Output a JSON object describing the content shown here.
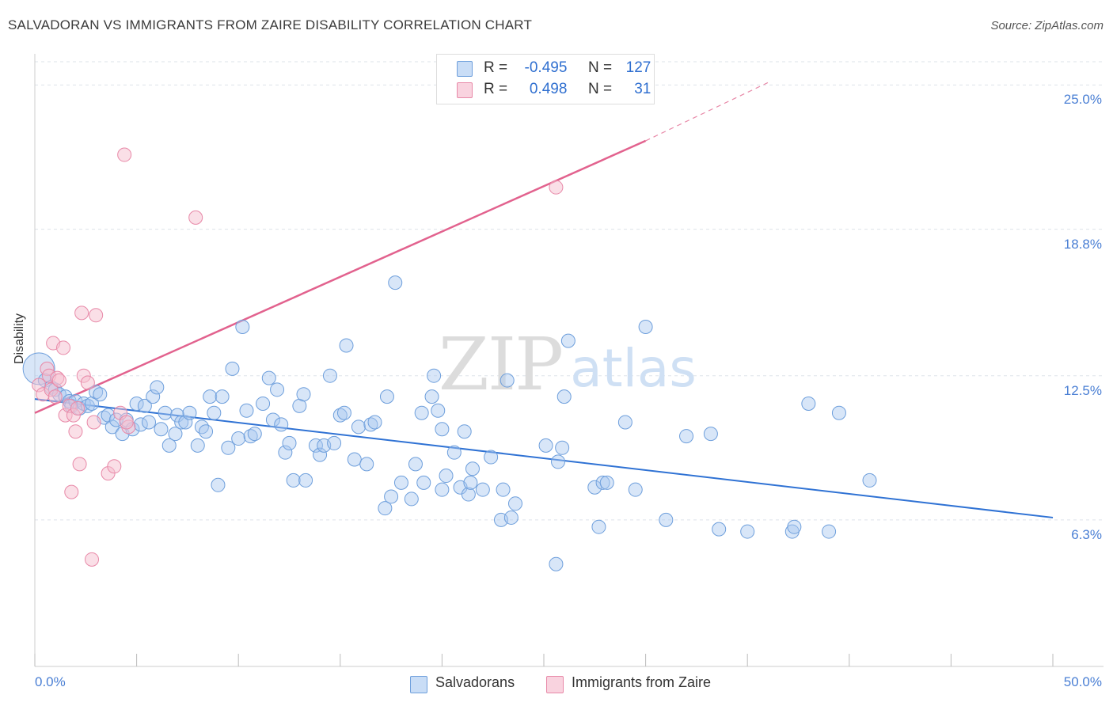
{
  "title": "SALVADORAN VS IMMIGRANTS FROM ZAIRE DISABILITY CORRELATION CHART",
  "source": "Source: ZipAtlas.com",
  "watermark": {
    "zip": "ZIP",
    "atlas": "atlas"
  },
  "legend": {
    "rows": [
      {
        "r_label": "R =",
        "r_value": "-0.495",
        "n_label": "N =",
        "n_value": "127",
        "color": "#a9c8f0"
      },
      {
        "r_label": "R =",
        "r_value": "0.498",
        "n_label": "N =",
        "n_value": "31",
        "color": "#f5b8ca"
      }
    ]
  },
  "bottom_legend": [
    {
      "label": "Salvadorans",
      "color": "#a9c8f0"
    },
    {
      "label": "Immigrants from Zaire",
      "color": "#f5b8ca"
    }
  ],
  "colors": {
    "blue_fill": "#a9c8f0",
    "blue_stroke": "#6e9fdc",
    "blue_line": "#2f72d4",
    "pink_fill": "#f5c0d0",
    "pink_stroke": "#e889a8",
    "pink_line": "#e2628e",
    "tick_text": "#4a7fd4",
    "grid": "#dde3ea"
  },
  "chart_data": {
    "type": "scatter",
    "ylabel": "Disability",
    "xlim": [
      0,
      50
    ],
    "ylim": [
      0,
      26
    ],
    "x_tick_labels": [
      "0.0%",
      "50.0%"
    ],
    "y_ticks": [
      {
        "value": 6.3,
        "label": "6.3%"
      },
      {
        "value": 12.5,
        "label": "12.5%"
      },
      {
        "value": 18.8,
        "label": "18.8%"
      },
      {
        "value": 25.0,
        "label": "25.0%"
      }
    ],
    "series": [
      {
        "name": "Salvadorans",
        "R": -0.495,
        "N": 127,
        "trend": {
          "x0": 0,
          "y0": 11.5,
          "x1": 50,
          "y1": 6.4
        },
        "points": [
          [
            0.2,
            12.8
          ],
          [
            0.5,
            12.3
          ],
          [
            0.8,
            12.0
          ],
          [
            1.0,
            11.9
          ],
          [
            1.2,
            11.7
          ],
          [
            1.5,
            11.6
          ],
          [
            1.7,
            11.4
          ],
          [
            1.8,
            11.2
          ],
          [
            2.0,
            11.4
          ],
          [
            2.2,
            11.1
          ],
          [
            2.4,
            11.3
          ],
          [
            2.6,
            11.2
          ],
          [
            2.8,
            11.3
          ],
          [
            3.0,
            11.8
          ],
          [
            3.2,
            11.7
          ],
          [
            3.4,
            10.7
          ],
          [
            3.6,
            10.8
          ],
          [
            3.8,
            10.3
          ],
          [
            4.0,
            10.6
          ],
          [
            4.3,
            10.0
          ],
          [
            4.5,
            10.6
          ],
          [
            4.8,
            10.2
          ],
          [
            5.0,
            11.3
          ],
          [
            5.2,
            10.4
          ],
          [
            5.4,
            11.2
          ],
          [
            5.6,
            10.5
          ],
          [
            5.8,
            11.6
          ],
          [
            6.0,
            12.0
          ],
          [
            6.2,
            10.2
          ],
          [
            6.4,
            10.9
          ],
          [
            6.6,
            9.5
          ],
          [
            6.9,
            10.0
          ],
          [
            7.0,
            10.8
          ],
          [
            7.2,
            10.5
          ],
          [
            7.4,
            10.5
          ],
          [
            7.6,
            10.9
          ],
          [
            8.0,
            9.5
          ],
          [
            8.2,
            10.3
          ],
          [
            8.4,
            10.1
          ],
          [
            8.6,
            11.6
          ],
          [
            8.8,
            10.9
          ],
          [
            9.0,
            7.8
          ],
          [
            9.2,
            11.6
          ],
          [
            9.5,
            9.4
          ],
          [
            9.7,
            12.8
          ],
          [
            10.0,
            9.8
          ],
          [
            10.2,
            14.6
          ],
          [
            10.4,
            11.0
          ],
          [
            10.6,
            9.9
          ],
          [
            10.8,
            10.0
          ],
          [
            11.2,
            11.3
          ],
          [
            11.5,
            12.4
          ],
          [
            11.7,
            10.6
          ],
          [
            11.9,
            11.9
          ],
          [
            12.1,
            10.4
          ],
          [
            12.3,
            9.2
          ],
          [
            12.5,
            9.6
          ],
          [
            12.7,
            8.0
          ],
          [
            13.0,
            11.2
          ],
          [
            13.2,
            11.7
          ],
          [
            13.3,
            8.0
          ],
          [
            13.8,
            9.5
          ],
          [
            14.0,
            9.1
          ],
          [
            14.2,
            9.5
          ],
          [
            14.5,
            12.5
          ],
          [
            14.7,
            9.6
          ],
          [
            15.0,
            10.8
          ],
          [
            15.2,
            10.9
          ],
          [
            15.3,
            13.8
          ],
          [
            15.7,
            8.9
          ],
          [
            15.9,
            10.3
          ],
          [
            16.3,
            8.7
          ],
          [
            16.5,
            10.4
          ],
          [
            16.7,
            10.5
          ],
          [
            17.2,
            6.8
          ],
          [
            17.3,
            11.6
          ],
          [
            17.5,
            7.3
          ],
          [
            17.7,
            16.5
          ],
          [
            18.0,
            7.9
          ],
          [
            18.5,
            7.2
          ],
          [
            18.7,
            8.7
          ],
          [
            19.0,
            10.9
          ],
          [
            19.1,
            7.9
          ],
          [
            19.5,
            11.6
          ],
          [
            19.6,
            12.5
          ],
          [
            19.8,
            11.0
          ],
          [
            20.0,
            10.2
          ],
          [
            20.0,
            7.6
          ],
          [
            20.2,
            8.2
          ],
          [
            20.6,
            9.2
          ],
          [
            20.9,
            7.7
          ],
          [
            21.1,
            10.1
          ],
          [
            21.3,
            7.4
          ],
          [
            21.4,
            7.9
          ],
          [
            21.5,
            8.5
          ],
          [
            22.0,
            7.6
          ],
          [
            22.4,
            9.0
          ],
          [
            22.9,
            6.3
          ],
          [
            23.0,
            7.6
          ],
          [
            23.2,
            12.3
          ],
          [
            23.4,
            6.4
          ],
          [
            23.6,
            7.0
          ],
          [
            25.1,
            9.5
          ],
          [
            25.6,
            4.4
          ],
          [
            25.7,
            8.8
          ],
          [
            25.9,
            9.4
          ],
          [
            26.0,
            11.6
          ],
          [
            26.2,
            14.0
          ],
          [
            27.5,
            7.7
          ],
          [
            27.7,
            6.0
          ],
          [
            27.9,
            7.9
          ],
          [
            28.1,
            7.9
          ],
          [
            29.0,
            10.5
          ],
          [
            29.5,
            7.6
          ],
          [
            30.0,
            14.6
          ],
          [
            31.0,
            6.3
          ],
          [
            32.0,
            9.9
          ],
          [
            33.2,
            10.0
          ],
          [
            33.6,
            5.9
          ],
          [
            35.0,
            5.8
          ],
          [
            37.2,
            5.8
          ],
          [
            37.3,
            6.0
          ],
          [
            38.0,
            11.3
          ],
          [
            39.0,
            5.8
          ],
          [
            39.5,
            10.9
          ],
          [
            41.0,
            8.0
          ]
        ]
      },
      {
        "name": "Immigrants from Zaire",
        "R": 0.498,
        "N": 31,
        "trend": {
          "x0": 0,
          "y0": 10.9,
          "x1": 30,
          "y1": 22.6,
          "dash_to_x": 36,
          "dash_to_y": 25.1
        },
        "points": [
          [
            0.2,
            12.1
          ],
          [
            0.4,
            11.7
          ],
          [
            0.6,
            12.8
          ],
          [
            0.7,
            12.5
          ],
          [
            0.8,
            11.9
          ],
          [
            0.9,
            13.9
          ],
          [
            1.0,
            11.6
          ],
          [
            1.1,
            12.4
          ],
          [
            1.2,
            12.3
          ],
          [
            1.4,
            13.7
          ],
          [
            1.5,
            10.8
          ],
          [
            1.7,
            11.2
          ],
          [
            1.8,
            7.5
          ],
          [
            1.9,
            10.8
          ],
          [
            2.0,
            10.1
          ],
          [
            2.1,
            11.1
          ],
          [
            2.2,
            8.7
          ],
          [
            2.3,
            15.2
          ],
          [
            2.4,
            12.5
          ],
          [
            2.6,
            12.2
          ],
          [
            2.8,
            4.6
          ],
          [
            2.9,
            10.5
          ],
          [
            3.0,
            15.1
          ],
          [
            3.6,
            8.3
          ],
          [
            3.9,
            8.6
          ],
          [
            4.2,
            10.9
          ],
          [
            4.4,
            22.0
          ],
          [
            4.6,
            10.3
          ],
          [
            7.9,
            19.3
          ],
          [
            25.6,
            20.6
          ],
          [
            4.5,
            10.5
          ]
        ]
      }
    ]
  }
}
